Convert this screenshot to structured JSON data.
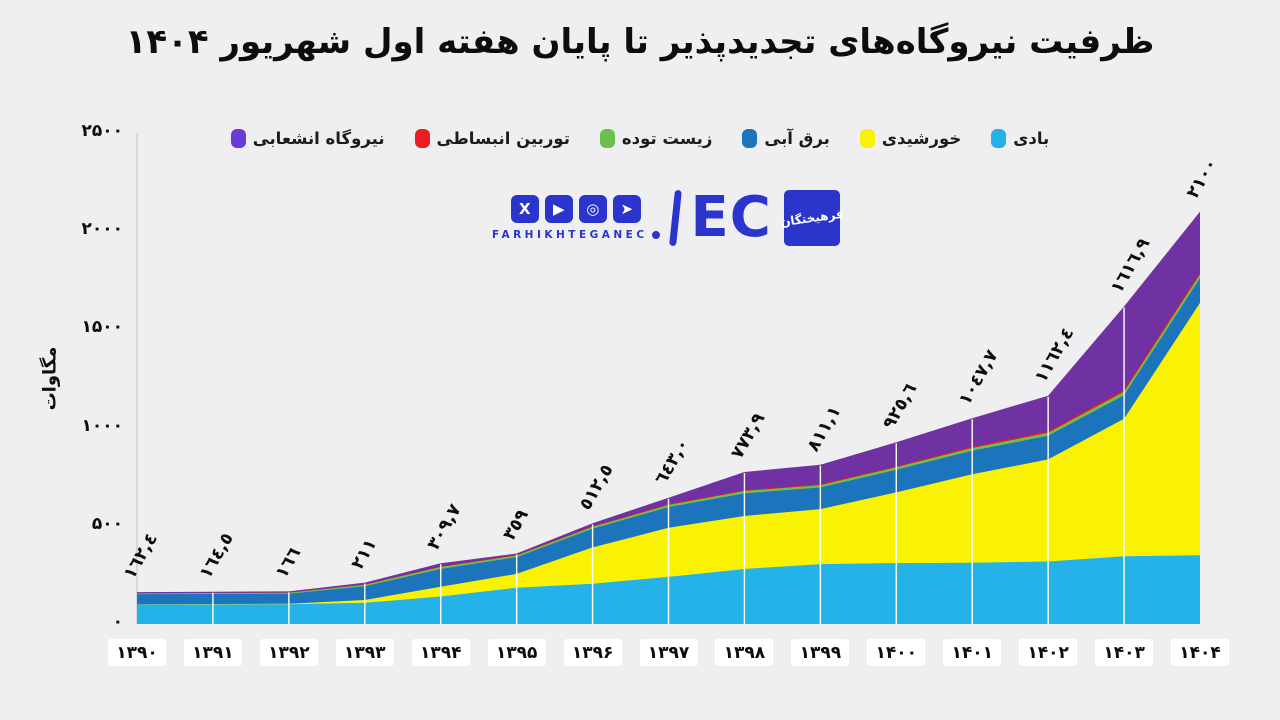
{
  "page": {
    "background": "#efeff1"
  },
  "header": {
    "title": "ظرفیت نیروگاه‌های تجدیدپذیر تا پایان هفته اول شهریور ۱۴۰۴"
  },
  "legend": {
    "items": [
      {
        "key": "wind",
        "label": "بادی",
        "color": "#25b2e8"
      },
      {
        "key": "solar",
        "label": "خورشیدی",
        "color": "#f9f303"
      },
      {
        "key": "hydro",
        "label": "برق آبی",
        "color": "#1b74bc"
      },
      {
        "key": "biomass",
        "label": "زیست توده",
        "color": "#6dbf4b"
      },
      {
        "key": "expansion-turbine",
        "label": "توربین انبساطی",
        "color": "#ed1c24"
      },
      {
        "key": "branch-plant",
        "label": "نیروگاه انشعابی",
        "color": "#6a3ad6"
      }
    ]
  },
  "logo": {
    "brand_color": "#2b35cc",
    "social_icons": [
      {
        "name": "x-icon",
        "glyph": "X"
      },
      {
        "name": "youtube-icon",
        "glyph": "▶"
      },
      {
        "name": "instagram-icon",
        "glyph": "◎"
      },
      {
        "name": "telegram-icon",
        "glyph": "➤"
      }
    ],
    "brand_text": "FARHIKHTEGANEC",
    "ec_text": "EC",
    "square_text": "فرهیختگان"
  },
  "chart_data": {
    "type": "area",
    "stacked": true,
    "title": "ظرفیت نیروگاه‌های تجدیدپذیر تا پایان هفته اول شهریور ۱۴۰۴",
    "ylabel": "مگاوات",
    "ylim": [
      0,
      2500
    ],
    "grid": "vertical-white-lines",
    "legend_position": "top",
    "categories": [
      "۱۳۹۰",
      "۱۳۹۱",
      "۱۳۹۲",
      "۱۳۹۳",
      "۱۳۹۴",
      "۱۳۹۵",
      "۱۳۹۶",
      "۱۳۹۷",
      "۱۳۹۸",
      "۱۳۹۹",
      "۱۴۰۰",
      "۱۴۰۱",
      "۱۴۰۲",
      "۱۴۰۳",
      "۱۴۰۴"
    ],
    "categories_western": [
      1390,
      1391,
      1392,
      1393,
      1394,
      1395,
      1396,
      1397,
      1398,
      1399,
      1400,
      1401,
      1402,
      1403,
      1404
    ],
    "totals": [
      162.4,
      164.5,
      166,
      211,
      309.7,
      359,
      512.5,
      643.0,
      773.9,
      811.1,
      925.6,
      1047.7,
      1162.4,
      1616.9,
      2100
    ],
    "totals_display": [
      "١٦٢,٤",
      "١٦٤,٥",
      "١٦٦",
      "٢١١",
      "٣٠٩,٧",
      "٣٥٩",
      "٥١٢,٥",
      "٦٤٣,٠",
      "٧٧٣,٩",
      "٨١١,١",
      "٩٢٥,٦",
      "١٠٤٧,٧",
      "١١٦٢,٤",
      "١٦١٦,٩",
      "٢١٠٠"
    ],
    "y_ticks": [
      {
        "label": "۲۵۰۰",
        "value": 2500
      },
      {
        "label": "۲۰۰۰",
        "value": 2000
      },
      {
        "label": "۱۵۰۰",
        "value": 1500
      },
      {
        "label": "۱۰۰۰",
        "value": 1000
      },
      {
        "label": "۵۰۰",
        "value": 500
      },
      {
        "label": "۰",
        "value": 0
      }
    ],
    "series": [
      {
        "key": "wind",
        "name": "بادی",
        "color": "#25b2e8",
        "values": [
          100,
          100,
          101,
          108,
          140,
          185,
          205,
          240,
          280,
          305,
          310,
          312,
          318,
          345,
          350
        ]
      },
      {
        "key": "solar",
        "name": "خورشیدی",
        "color": "#f9f303",
        "values": [
          1,
          2,
          2,
          14,
          50,
          70,
          185,
          250,
          270,
          280,
          360,
          450,
          520,
          700,
          1285
        ]
      },
      {
        "key": "hydro",
        "name": "برق آبی",
        "color": "#1b74bc",
        "values": [
          50,
          51,
          51,
          70,
          90,
          85,
          95,
          105,
          115,
          110,
          115,
          120,
          120,
          120,
          125
        ]
      },
      {
        "key": "biomass",
        "name": "زیست توده",
        "color": "#6dbf4b",
        "values": [
          5,
          5,
          5,
          8,
          10,
          9,
          10,
          11,
          12,
          12,
          13,
          14,
          15,
          18,
          20
        ]
      },
      {
        "key": "expansion-turbine",
        "name": "توربین انبساطی",
        "color": "#ed1c24",
        "values": [
          0.4,
          0.5,
          1,
          2,
          3,
          3,
          3.5,
          4,
          4,
          4.1,
          5.6,
          6.7,
          7.4,
          9,
          10
        ]
      },
      {
        "key": "branch-plant",
        "name": "نیروگاه انشعابی",
        "color": "#7031a2",
        "values": [
          6,
          6,
          6,
          9,
          16.7,
          7,
          14,
          33,
          92.9,
          100,
          122,
          145,
          182,
          424.9,
          310
        ]
      }
    ],
    "colors": {
      "background": "#efeff1",
      "axis_line": "#c9cccd",
      "gridline": "#ffffff",
      "label_text": "#0d0d0d",
      "tick_chip_bg": "#ffffff"
    }
  }
}
